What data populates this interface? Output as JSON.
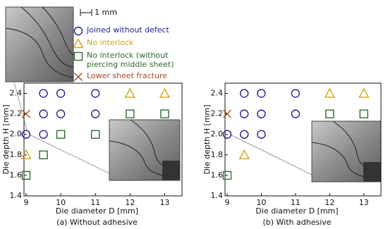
{
  "scale_bar": "1 mm",
  "chart_data": [
    {
      "type": "scatter",
      "caption": "(a) Without adhesive",
      "xlabel": "Die diameter D [mm]",
      "ylabel": "Die depth H [mm]",
      "xlim": [
        9,
        13.5
      ],
      "ylim": [
        1.4,
        2.5
      ],
      "xticks": [
        9,
        10,
        11,
        12,
        13
      ],
      "yticks": [
        1.4,
        1.6,
        1.8,
        {
          "value": 2,
          "label": "2.0"
        },
        2.2,
        2.4
      ],
      "series": [
        {
          "name": "Joined without defect",
          "color": "#23238e",
          "marker": "circle",
          "x": [
            9,
            9.5,
            10,
            11,
            9.5,
            10,
            11,
            9.5
          ],
          "y": [
            2,
            2.4,
            2.4,
            2.4,
            2.2,
            2.2,
            2.2,
            2
          ]
        },
        {
          "name": "No interlock",
          "color": "#d4a21a",
          "marker": "triangle",
          "x": [
            12,
            13,
            9
          ],
          "y": [
            2.4,
            2.4,
            1.8
          ]
        },
        {
          "name": "No interlock (without piercing middle sheet)",
          "color": "#2f6b2f",
          "marker": "square",
          "x": [
            12,
            13,
            10,
            11,
            9.5,
            9
          ],
          "y": [
            2.2,
            2.2,
            2,
            2,
            1.8,
            1.6
          ]
        },
        {
          "name": "Lower sheet fracture",
          "color": "#a64b1e",
          "marker": "cross",
          "x": [
            9
          ],
          "y": [
            2.2
          ]
        }
      ]
    },
    {
      "type": "scatter",
      "caption": "(b) With adhesive",
      "xlabel": "Die diameter D [mm]",
      "ylabel": "Die depth H [mm]",
      "xlim": [
        9,
        13.5
      ],
      "ylim": [
        1.4,
        2.5
      ],
      "xticks": [
        9,
        10,
        11,
        12,
        13
      ],
      "yticks": [
        1.4,
        1.6,
        1.8,
        {
          "value": 2,
          "label": "2.0"
        },
        2.2,
        2.4
      ],
      "series": [
        {
          "color": "#23238e",
          "marker": "circle",
          "x": [
            9,
            9.5,
            10,
            11,
            9.5,
            10,
            11,
            9.5,
            10
          ],
          "y": [
            2,
            2.4,
            2.4,
            2.4,
            2.2,
            2.2,
            2.2,
            2,
            2
          ]
        },
        {
          "color": "#d4a21a",
          "marker": "triangle",
          "x": [
            12,
            13,
            9.5
          ],
          "y": [
            2.4,
            2.4,
            1.8
          ]
        },
        {
          "color": "#2f6b2f",
          "marker": "square",
          "x": [
            12,
            13,
            9
          ],
          "y": [
            2.2,
            2.2,
            1.6
          ]
        },
        {
          "color": "#a64b1e",
          "marker": "cross",
          "x": [
            9
          ],
          "y": [
            2.2
          ]
        }
      ]
    }
  ]
}
